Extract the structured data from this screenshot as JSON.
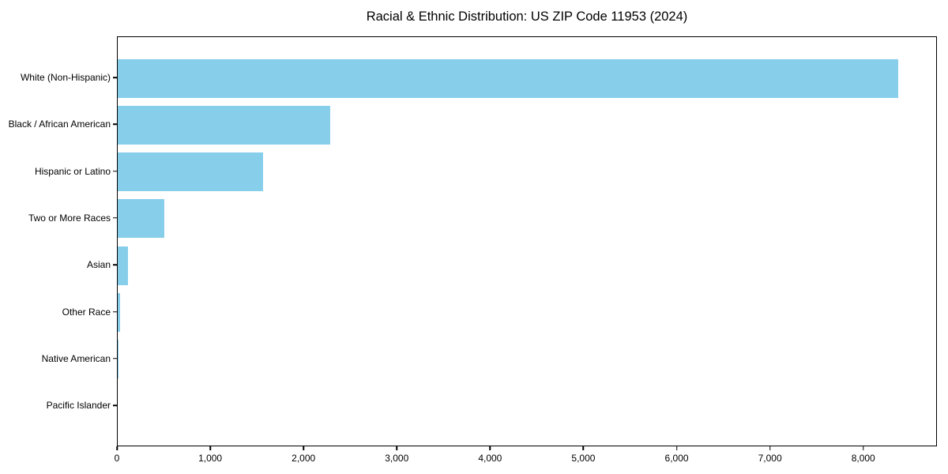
{
  "chart_data": {
    "type": "bar",
    "orientation": "horizontal",
    "title": "Racial & Ethnic Distribution: US ZIP Code 11953 (2024)",
    "categories": [
      "White (Non-Hispanic)",
      "Black / African American",
      "Hispanic or Latino",
      "Two or More Races",
      "Asian",
      "Other Race",
      "Native American",
      "Pacific Islander"
    ],
    "values": [
      8370,
      2280,
      1560,
      500,
      110,
      23,
      4,
      0
    ],
    "xlabel": "",
    "ylabel": "",
    "xlim": [
      0,
      8790
    ],
    "x_ticks": [
      0,
      1000,
      2000,
      3000,
      4000,
      5000,
      6000,
      7000,
      8000
    ],
    "x_tick_labels": [
      "0",
      "1,000",
      "2,000",
      "3,000",
      "4,000",
      "5,000",
      "6,000",
      "7,000",
      "8,000"
    ],
    "bar_color": "#87CEEB",
    "frame_color": "#000000",
    "grid": false,
    "legend_position": "none"
  }
}
